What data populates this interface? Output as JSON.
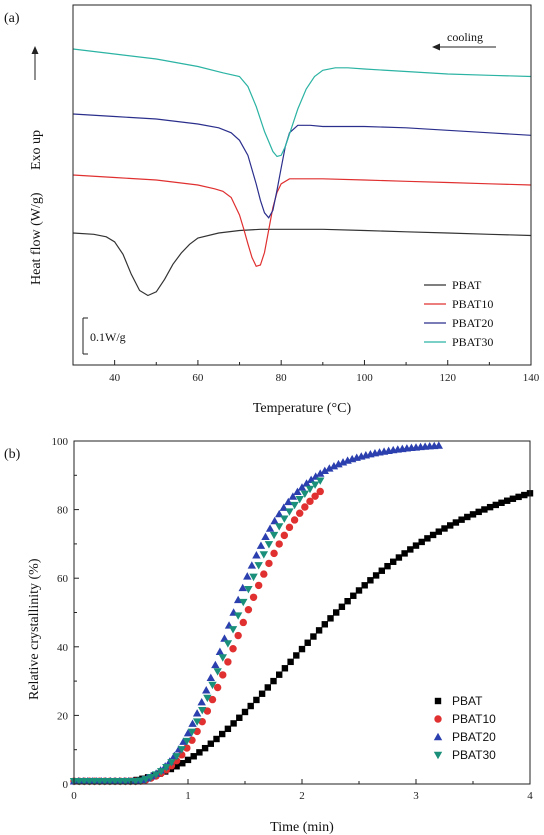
{
  "chart_data": [
    {
      "panel": "(a)",
      "type": "line",
      "xlabel": "Temperature (°C)",
      "ylabel": "Heat flow (W/g)",
      "exo_label": "Exo up",
      "annotation": "cooling",
      "scale_label": "0.1W/g",
      "xlim": [
        30,
        140
      ],
      "xticks": [
        40,
        60,
        80,
        100,
        120,
        140
      ],
      "legend_position": "bottom-right",
      "series": [
        {
          "name": "PBAT",
          "color": "#333333",
          "x": [
            30,
            35,
            38,
            40,
            42,
            44,
            46,
            48,
            50,
            52,
            54,
            56,
            58,
            60,
            65,
            70,
            75,
            80,
            90,
            100,
            110,
            120,
            130,
            140
          ],
          "y": [
            0.0,
            -0.01,
            -0.03,
            -0.07,
            -0.17,
            -0.33,
            -0.46,
            -0.5,
            -0.47,
            -0.37,
            -0.25,
            -0.16,
            -0.09,
            -0.04,
            0.0,
            0.02,
            0.03,
            0.03,
            0.03,
            0.02,
            0.01,
            0.0,
            -0.01,
            -0.02
          ]
        },
        {
          "name": "PBAT10",
          "color": "#e03030",
          "x": [
            30,
            40,
            50,
            60,
            64,
            66,
            68,
            70,
            71,
            72,
            73,
            74,
            75,
            76,
            77,
            78,
            79,
            80,
            82,
            85,
            90,
            100,
            110,
            120,
            130,
            140
          ],
          "y": [
            0.0,
            -0.02,
            -0.04,
            -0.08,
            -0.11,
            -0.13,
            -0.18,
            -0.32,
            -0.43,
            -0.55,
            -0.66,
            -0.73,
            -0.72,
            -0.62,
            -0.44,
            -0.26,
            -0.14,
            -0.07,
            -0.03,
            -0.03,
            -0.03,
            -0.04,
            -0.05,
            -0.06,
            -0.07,
            -0.08
          ]
        },
        {
          "name": "PBAT20",
          "color": "#2b2f8c",
          "x": [
            30,
            40,
            50,
            60,
            65,
            68,
            70,
            72,
            74,
            75,
            76,
            77,
            78,
            79,
            80,
            81,
            82,
            84,
            87,
            90,
            100,
            110,
            120,
            130,
            140
          ],
          "y": [
            0.0,
            -0.02,
            -0.04,
            -0.08,
            -0.11,
            -0.15,
            -0.21,
            -0.33,
            -0.56,
            -0.69,
            -0.79,
            -0.83,
            -0.77,
            -0.61,
            -0.43,
            -0.26,
            -0.15,
            -0.09,
            -0.09,
            -0.1,
            -0.1,
            -0.11,
            -0.13,
            -0.15,
            -0.17
          ]
        },
        {
          "name": "PBAT30",
          "color": "#2bb3a3",
          "x": [
            30,
            40,
            50,
            60,
            66,
            70,
            72,
            74,
            76,
            78,
            79,
            80,
            81,
            82,
            84,
            86,
            88,
            90,
            93,
            96,
            100,
            110,
            120,
            130,
            140
          ],
          "y": [
            0.0,
            -0.04,
            -0.08,
            -0.14,
            -0.19,
            -0.22,
            -0.3,
            -0.46,
            -0.66,
            -0.82,
            -0.86,
            -0.85,
            -0.78,
            -0.68,
            -0.48,
            -0.32,
            -0.22,
            -0.17,
            -0.15,
            -0.15,
            -0.16,
            -0.18,
            -0.2,
            -0.21,
            -0.22
          ]
        }
      ]
    },
    {
      "panel": "(b)",
      "type": "scatter",
      "xlabel": "Time (min)",
      "ylabel": "Relative crystallinity (%)",
      "xlim": [
        0,
        4
      ],
      "ylim": [
        0,
        100
      ],
      "xticks": [
        0,
        1,
        2,
        3,
        4
      ],
      "yticks": [
        0,
        20,
        40,
        60,
        80,
        100
      ],
      "legend_position": "bottom-right",
      "series": [
        {
          "name": "PBAT",
          "color": "#000000",
          "marker": "square",
          "t50": 2.3,
          "k": 3.1,
          "tstart": 0.0,
          "tend": 4.0,
          "step": 0.05
        },
        {
          "name": "PBAT10",
          "color": "#e03030",
          "marker": "circle",
          "t50": 1.52,
          "k": 5.0,
          "tstart": 0.0,
          "tend": 2.2,
          "step": 0.045
        },
        {
          "name": "PBAT20",
          "color": "#2b3fae",
          "marker": "triangle-up",
          "t50": 1.4,
          "k": 5.2,
          "tstart": 0.0,
          "tend": 3.2,
          "step": 0.04
        },
        {
          "name": "PBAT30",
          "color": "#1a8f7a",
          "marker": "triangle-down",
          "t50": 1.45,
          "k": 5.1,
          "tstart": 0.0,
          "tend": 2.2,
          "step": 0.045
        }
      ]
    }
  ]
}
